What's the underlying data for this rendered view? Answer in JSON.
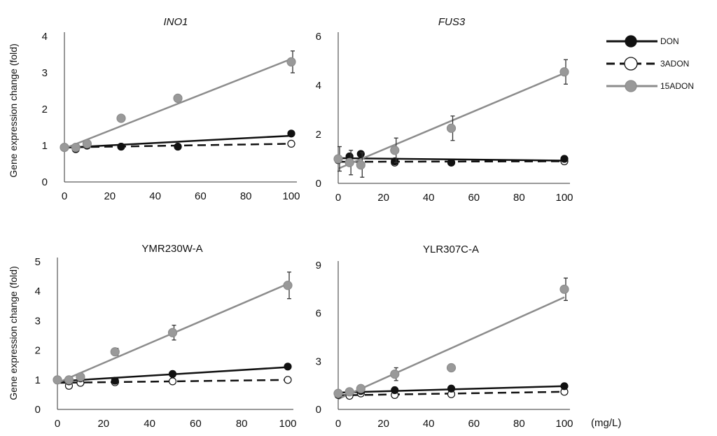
{
  "figure": {
    "ylabel": "Gene expression change (fold)",
    "unit_label": "(mg/L)"
  },
  "legend": {
    "items": [
      {
        "name": "DON",
        "color": "#111111",
        "marker_fill": "#111111",
        "line": "solid"
      },
      {
        "name": "3ADON",
        "color": "#111111",
        "marker_fill": "#ffffff",
        "line": "dashed"
      },
      {
        "name": "15ADON",
        "color": "#8c8c8c",
        "marker_fill": "#999999",
        "line": "solid"
      }
    ]
  },
  "chart_data": [
    {
      "type": "scatter",
      "title": "INO1",
      "title_italic": true,
      "x_ticks": [
        0,
        20,
        40,
        60,
        80,
        100
      ],
      "y_ticks": [
        0,
        1,
        2,
        3,
        4
      ],
      "xlim": [
        0,
        100
      ],
      "ylim": [
        0,
        4
      ],
      "series": [
        {
          "name": "DON",
          "x": [
            0,
            5,
            10,
            25,
            50,
            100
          ],
          "y": [
            0.95,
            0.9,
            1.0,
            0.97,
            0.97,
            1.33
          ],
          "err": [
            0,
            0,
            0,
            0,
            0,
            0.08
          ],
          "trend": [
            0.94,
            1.27
          ]
        },
        {
          "name": "3ADON",
          "x": [
            0,
            5,
            10,
            25,
            50,
            100
          ],
          "y": [
            0.95,
            0.93,
            1.0,
            0.97,
            0.97,
            1.05
          ],
          "err": [
            0,
            0,
            0,
            0,
            0,
            0
          ],
          "trend": [
            0.95,
            1.05
          ]
        },
        {
          "name": "15ADON",
          "x": [
            0,
            5,
            10,
            25,
            50,
            100
          ],
          "y": [
            0.95,
            0.95,
            1.05,
            1.75,
            2.3,
            3.3
          ],
          "err": [
            0,
            0,
            0,
            0,
            0,
            0.3
          ],
          "trend": [
            0.92,
            3.38
          ]
        }
      ]
    },
    {
      "type": "scatter",
      "title": "FUS3",
      "title_italic": true,
      "x_ticks": [
        0,
        20,
        40,
        60,
        80,
        100
      ],
      "y_ticks": [
        0,
        2,
        4,
        6
      ],
      "xlim": [
        0,
        100
      ],
      "ylim": [
        0,
        6
      ],
      "series": [
        {
          "name": "DON",
          "x": [
            0,
            5,
            10,
            25,
            50,
            100
          ],
          "y": [
            1.0,
            1.1,
            1.2,
            0.9,
            0.85,
            1.0
          ],
          "err": [
            0,
            0,
            0,
            0,
            0,
            0
          ],
          "trend": [
            1.03,
            0.93
          ]
        },
        {
          "name": "3ADON",
          "x": [
            0,
            5,
            10,
            25,
            50,
            100
          ],
          "y": [
            0.95,
            0.9,
            0.75,
            0.85,
            0.85,
            0.9
          ],
          "err": [
            0,
            0,
            0,
            0,
            0,
            0
          ],
          "trend": [
            0.88,
            0.9
          ]
        },
        {
          "name": "15ADON",
          "x": [
            0,
            5,
            10,
            25,
            50,
            100
          ],
          "y": [
            1.0,
            0.85,
            0.75,
            1.35,
            2.25,
            4.55
          ],
          "err": [
            0.5,
            0.5,
            0.5,
            0.5,
            0.5,
            0.5
          ],
          "trend": [
            0.6,
            4.5
          ]
        }
      ]
    },
    {
      "type": "scatter",
      "title": "YMR230W-A",
      "title_italic": false,
      "x_ticks": [
        0,
        20,
        40,
        60,
        80,
        100
      ],
      "y_ticks": [
        0,
        1,
        2,
        3,
        4,
        5
      ],
      "xlim": [
        0,
        100
      ],
      "ylim": [
        0,
        5
      ],
      "series": [
        {
          "name": "DON",
          "x": [
            0,
            5,
            10,
            25,
            50,
            100
          ],
          "y": [
            1.0,
            0.95,
            1.05,
            0.97,
            1.2,
            1.45
          ],
          "err": [
            0,
            0,
            0,
            0,
            0,
            0
          ],
          "trend": [
            0.95,
            1.43
          ]
        },
        {
          "name": "3ADON",
          "x": [
            0,
            5,
            10,
            25,
            50,
            100
          ],
          "y": [
            1.0,
            0.8,
            0.9,
            0.92,
            0.95,
            1.0
          ],
          "err": [
            0,
            0,
            0,
            0,
            0,
            0
          ],
          "trend": [
            0.9,
            1.0
          ]
        },
        {
          "name": "15ADON",
          "x": [
            0,
            5,
            10,
            25,
            50,
            100
          ],
          "y": [
            1.0,
            1.0,
            1.1,
            1.95,
            2.6,
            4.2
          ],
          "err": [
            0,
            0,
            0,
            0.12,
            0.25,
            0.45
          ],
          "trend": [
            0.9,
            4.25
          ]
        }
      ]
    },
    {
      "type": "scatter",
      "title": "YLR307C-A",
      "title_italic": false,
      "x_ticks": [
        0,
        20,
        40,
        60,
        80,
        100
      ],
      "y_ticks": [
        0,
        3,
        6,
        9
      ],
      "xlim": [
        0,
        100
      ],
      "ylim": [
        0,
        9
      ],
      "series": [
        {
          "name": "DON",
          "x": [
            0,
            5,
            10,
            25,
            50,
            100
          ],
          "y": [
            1.0,
            1.1,
            1.15,
            1.2,
            1.3,
            1.45
          ],
          "err": [
            0,
            0,
            0,
            0,
            0,
            0
          ],
          "trend": [
            1.05,
            1.45
          ]
        },
        {
          "name": "3ADON",
          "x": [
            0,
            5,
            10,
            25,
            50,
            100
          ],
          "y": [
            0.9,
            0.85,
            1.0,
            0.9,
            0.95,
            1.1
          ],
          "err": [
            0,
            0,
            0,
            0,
            0,
            0
          ],
          "trend": [
            0.88,
            1.1
          ]
        },
        {
          "name": "15ADON",
          "x": [
            0,
            5,
            10,
            25,
            50,
            100
          ],
          "y": [
            1.0,
            1.1,
            1.3,
            2.2,
            2.6,
            7.5
          ],
          "err": [
            0,
            0,
            0,
            0.4,
            0,
            0.7
          ],
          "trend": [
            0.65,
            7.0
          ]
        }
      ]
    }
  ]
}
